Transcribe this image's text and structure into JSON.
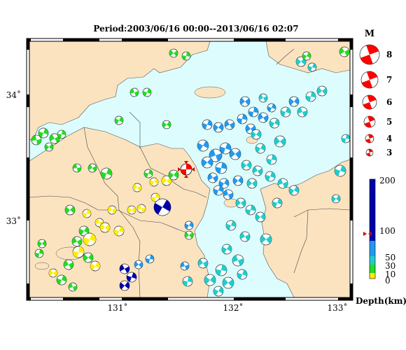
{
  "title": "Period:2003/06/16 00:00--2013/06/16 02:07",
  "axis": {
    "lon_labels": [
      "131˚",
      "132˚",
      "133˚"
    ],
    "lat_labels": [
      "34˚",
      "33˚"
    ]
  },
  "magnitude_legend": {
    "title": "M",
    "items": [
      "8",
      "7",
      "6",
      "5",
      "4",
      "3"
    ]
  },
  "depth_scale": {
    "title": "Depth(km)",
    "ticks": [
      "200",
      "100",
      "50",
      "30",
      "10",
      "0"
    ]
  },
  "colors": {
    "sea": "#dcfcfd",
    "land": "#fbe3c0",
    "depth_0_10": "#ffee00",
    "depth_10_30": "#22dd22",
    "depth_30_50": "#22cccc",
    "depth_50_100": "#2299ee",
    "depth_100_200": "#0000a8",
    "highlight": "#ff0000"
  }
}
